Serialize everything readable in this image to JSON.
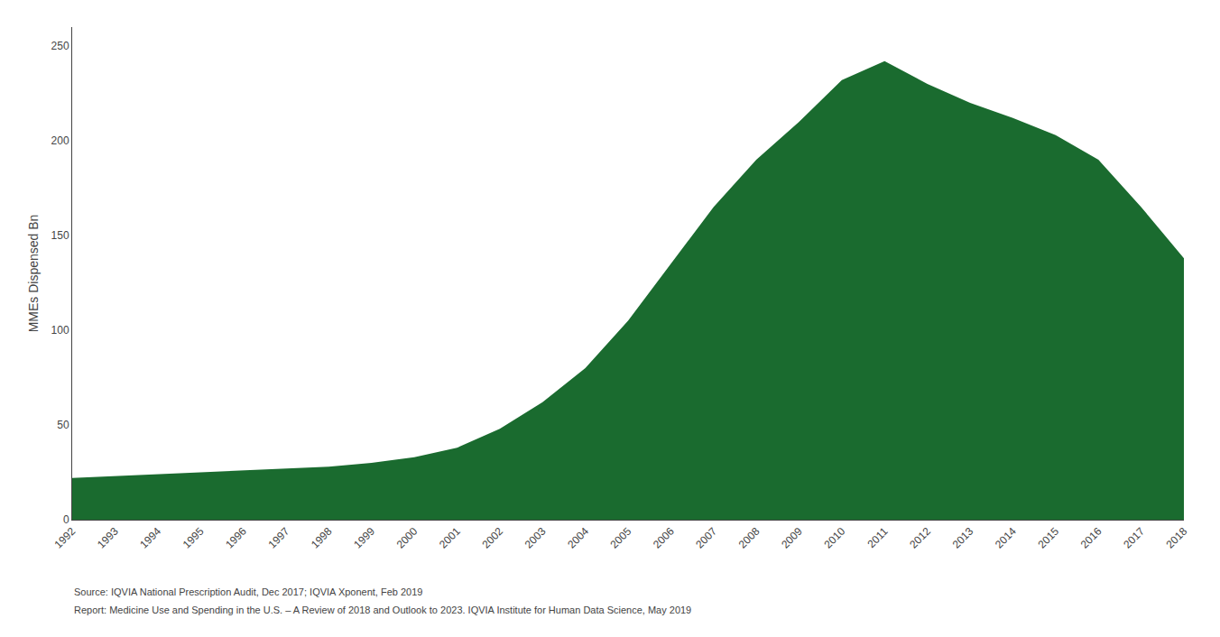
{
  "chart_data": {
    "type": "area",
    "x": [
      1992,
      1993,
      1994,
      1995,
      1996,
      1997,
      1998,
      1999,
      2000,
      2001,
      2002,
      2003,
      2004,
      2005,
      2006,
      2007,
      2008,
      2009,
      2010,
      2011,
      2012,
      2013,
      2014,
      2015,
      2016,
      2017,
      2018
    ],
    "values": [
      22,
      23,
      24,
      25,
      26,
      27,
      28,
      30,
      33,
      38,
      48,
      62,
      80,
      105,
      135,
      165,
      190,
      210,
      232,
      242,
      230,
      220,
      212,
      203,
      190,
      165,
      138
    ],
    "color": "#1a6b2f",
    "ylabel": "MMEs Dispensed Bn",
    "xlim": [
      1992,
      2018
    ],
    "xticks": [
      1992,
      1993,
      1994,
      1995,
      1996,
      1997,
      1998,
      1999,
      2000,
      2001,
      2002,
      2003,
      2004,
      2005,
      2006,
      2007,
      2008,
      2009,
      2010,
      2011,
      2012,
      2013,
      2014,
      2015,
      2016,
      2017,
      2018
    ],
    "ylim": [
      0,
      260
    ],
    "yticks": [
      0,
      50,
      100,
      150,
      200,
      250
    ],
    "grid": false,
    "annotations": [
      "Source: IQVIA National Prescription Audit, Dec 2017; IQVIA Xponent, Feb 2019",
      "Report: Medicine Use and Spending in the U.S. – A Review of 2018 and Outlook to 2023. IQVIA Institute for Human Data Science, May 2019"
    ]
  }
}
